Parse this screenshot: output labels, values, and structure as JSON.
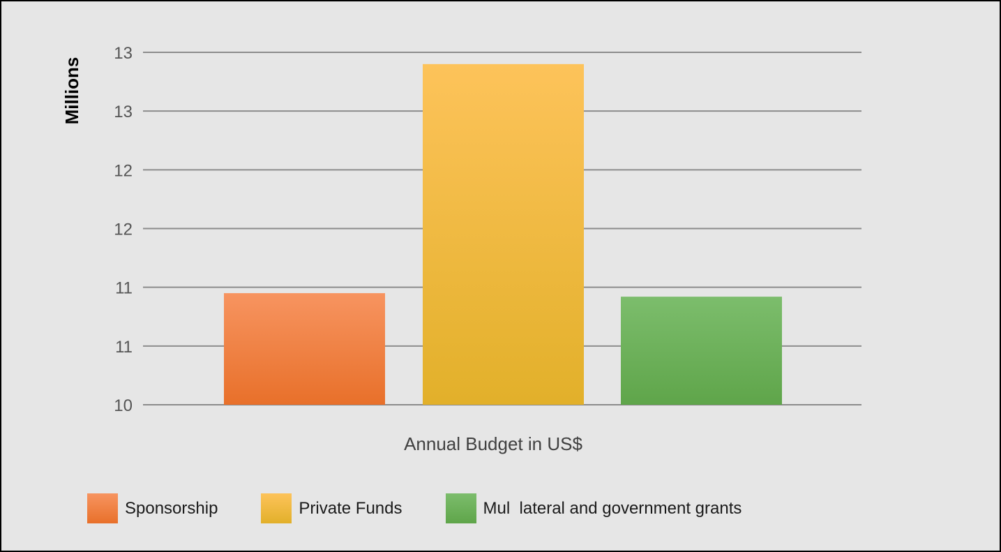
{
  "chart_data": {
    "type": "bar",
    "title": "",
    "xlabel": "Annual Budget in US$",
    "ylabel": "Millions",
    "y_tick_labels": [
      "10",
      "11",
      "11",
      "12",
      "12",
      "13",
      "13"
    ],
    "ylim": [
      10,
      13
    ],
    "grid": true,
    "legend_position": "bottom",
    "series": [
      {
        "name": "Sponsorship",
        "values": [
          10.95
        ],
        "color_top": "#f79460",
        "color_bottom": "#e8702a"
      },
      {
        "name": "Private Funds",
        "values": [
          12.9
        ],
        "color_top": "#fdc35a",
        "color_bottom": "#e2b02a"
      },
      {
        "name": "Mul  lateral and government grants",
        "values": [
          10.92
        ],
        "color_top": "#7cbd6c",
        "color_bottom": "#5fa54a"
      }
    ]
  },
  "legend": {
    "items": [
      {
        "label": "Sponsorship",
        "color": "#ef7d3e"
      },
      {
        "label": "Private Funds",
        "color": "#fdbf33"
      },
      {
        "label": "Mul  lateral and government grants",
        "color": "#6db558"
      }
    ]
  }
}
